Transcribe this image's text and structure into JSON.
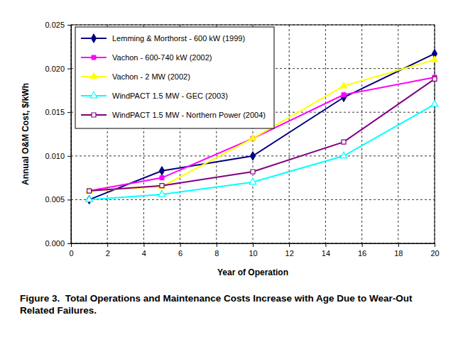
{
  "chart_data": {
    "type": "line",
    "title": "Figure 3.  Total Operations and Maintenance Costs Increase with Age Due to Wear-Out Related Failures.",
    "x_label": "Year of Operation",
    "y_label": "Annual O&M Cost, $/kWh",
    "x": [
      1,
      5,
      10,
      15,
      20
    ],
    "series": [
      {
        "name": "Lemming & Morthorst - 600 kW (1999)",
        "color": "#000080",
        "marker": "diamond",
        "values": [
          0.005,
          0.0083,
          0.01,
          0.0167,
          0.0217
        ]
      },
      {
        "name": "Vachon - 600-740 kW (2002)",
        "color": "#ff00ff",
        "marker": "square",
        "values": [
          0.006,
          0.0075,
          0.012,
          0.017,
          0.019
        ]
      },
      {
        "name": "Vachon - 2 MW (2002)",
        "color": "#ffff00",
        "marker": "triangle",
        "values": [
          0.006,
          0.0065,
          0.012,
          0.018,
          0.021
        ]
      },
      {
        "name": "WindPACT 1.5 MW - GEC (2003)",
        "color": "#00ffff",
        "marker": "triangle-open",
        "values": [
          0.005,
          0.0056,
          0.007,
          0.01,
          0.0159
        ]
      },
      {
        "name": "WindPACT 1.5 MW - Northern Power (2004)",
        "color": "#800080",
        "marker": "square-open",
        "values": [
          0.006,
          0.0066,
          0.0082,
          0.0116,
          0.0188
        ]
      }
    ],
    "xlim": [
      0,
      20
    ],
    "xticks": [
      0,
      2,
      4,
      6,
      8,
      10,
      12,
      14,
      16,
      18,
      20
    ],
    "ylim": [
      0,
      0.025
    ],
    "yticks": [
      {
        "value": 0,
        "label": "0.000"
      },
      0.005,
      {
        "value": 0.01,
        "label": "0.010"
      },
      0.015,
      {
        "value": 0.02,
        "label": "0.020"
      },
      0.025
    ],
    "grid": true,
    "legend": "upper left"
  }
}
